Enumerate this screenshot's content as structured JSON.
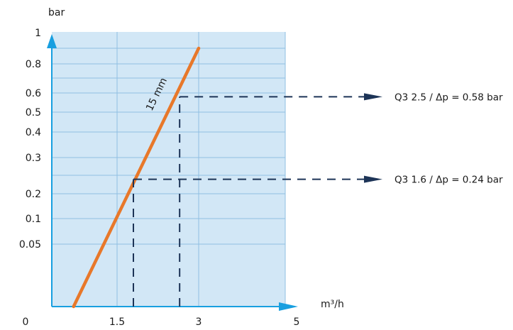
{
  "chart_data": {
    "type": "line",
    "title": "",
    "xlabel": "m³/h",
    "ylabel": "bar",
    "x_ticks": [
      "0",
      "1.5",
      "3",
      "5"
    ],
    "y_ticks": [
      "1",
      "0.8",
      "0.6",
      "0.5",
      "0.4",
      "0.3",
      "0.2",
      "0.1",
      "0.05"
    ],
    "y_zero_label": "0",
    "xlim": [
      0,
      3.6
    ],
    "ylim": [
      0,
      1
    ],
    "grid": true,
    "series": [
      {
        "name": "15 mm",
        "color": "#e8782a",
        "points": [
          {
            "x": 0.5,
            "y": 0.0
          },
          {
            "x": 3.0,
            "y": 0.9
          }
        ]
      }
    ],
    "annotations": [
      {
        "text": "Q3 2.5 / Δp = 0.58 bar",
        "x": 2.65,
        "y": 0.58
      },
      {
        "text": "Q3 1.6 / Δp = 0.24 bar",
        "x": 1.8,
        "y": 0.24
      }
    ],
    "colors": {
      "plot_bg": "#d2e7f6",
      "grid": "#90bfe2",
      "axis": "#189fe0",
      "curve": "#e8782a",
      "dashes": "#1d3457"
    }
  }
}
